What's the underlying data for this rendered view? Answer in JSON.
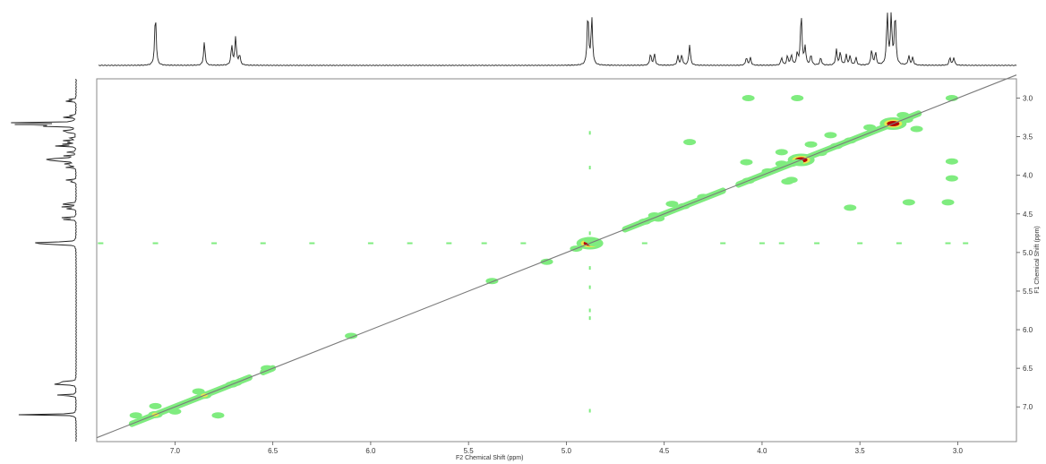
{
  "chart_data": {
    "type": "heatmap",
    "subtype": "2D NMR COSY contour plot with 1D projections",
    "xlabel": "F2 Chemical Shift (ppm)",
    "ylabel": "F1 Chemical Shift (ppm)",
    "xlim": [
      7.4,
      2.7
    ],
    "ylim": [
      2.75,
      7.45
    ],
    "x_reversed": true,
    "y_reversed": true,
    "xticks": [
      "7.0",
      "6.5",
      "6.0",
      "5.5",
      "5.0",
      "4.5",
      "4.0",
      "3.5",
      "3.0"
    ],
    "yticks": [
      "3.0",
      "3.5",
      "4.0",
      "4.5",
      "5.0",
      "5.5",
      "6.0",
      "6.5",
      "7.0"
    ],
    "grid": false,
    "diagonal": true,
    "colors": {
      "low": "#7fec7f",
      "mid": "#e8e850",
      "high": "#b80000",
      "diagonal": "#7a7a7a",
      "spectrum": "#222222"
    },
    "projection_peaks": [
      {
        "ppm": 7.1,
        "height": 1.0
      },
      {
        "ppm": 6.85,
        "height": 0.45
      },
      {
        "ppm": 6.71,
        "height": 0.38
      },
      {
        "ppm": 6.69,
        "height": 0.55
      },
      {
        "ppm": 6.67,
        "height": 0.2
      },
      {
        "ppm": 4.89,
        "height": 1.0
      },
      {
        "ppm": 4.87,
        "height": 0.9
      },
      {
        "ppm": 4.57,
        "height": 0.22
      },
      {
        "ppm": 4.55,
        "height": 0.22
      },
      {
        "ppm": 4.43,
        "height": 0.18
      },
      {
        "ppm": 4.41,
        "height": 0.2
      },
      {
        "ppm": 4.37,
        "height": 0.4
      },
      {
        "ppm": 4.08,
        "height": 0.15
      },
      {
        "ppm": 4.06,
        "height": 0.15
      },
      {
        "ppm": 3.9,
        "height": 0.15
      },
      {
        "ppm": 3.87,
        "height": 0.18
      },
      {
        "ppm": 3.85,
        "height": 0.2
      },
      {
        "ppm": 3.82,
        "height": 0.22
      },
      {
        "ppm": 3.8,
        "height": 1.0
      },
      {
        "ppm": 3.78,
        "height": 0.35
      },
      {
        "ppm": 3.75,
        "height": 0.2
      },
      {
        "ppm": 3.7,
        "height": 0.15
      },
      {
        "ppm": 3.62,
        "height": 0.3
      },
      {
        "ppm": 3.6,
        "height": 0.25
      },
      {
        "ppm": 3.57,
        "height": 0.2
      },
      {
        "ppm": 3.55,
        "height": 0.18
      },
      {
        "ppm": 3.52,
        "height": 0.15
      },
      {
        "ppm": 3.44,
        "height": 0.3
      },
      {
        "ppm": 3.42,
        "height": 0.25
      },
      {
        "ppm": 3.36,
        "height": 1.0
      },
      {
        "ppm": 3.34,
        "height": 0.95
      },
      {
        "ppm": 3.32,
        "height": 1.0
      },
      {
        "ppm": 3.25,
        "height": 0.18
      },
      {
        "ppm": 3.23,
        "height": 0.15
      },
      {
        "ppm": 3.04,
        "height": 0.15
      },
      {
        "ppm": 3.02,
        "height": 0.15
      }
    ],
    "cross_peaks": [
      {
        "x": 7.1,
        "y": 7.1,
        "level": "mid"
      },
      {
        "x": 7.0,
        "y": 7.06,
        "level": "low"
      },
      {
        "x": 6.85,
        "y": 6.85,
        "level": "mid"
      },
      {
        "x": 6.88,
        "y": 6.8,
        "level": "low"
      },
      {
        "x": 6.71,
        "y": 6.71,
        "level": "low"
      },
      {
        "x": 6.69,
        "y": 6.69,
        "level": "low"
      },
      {
        "x": 7.2,
        "y": 7.11,
        "level": "low"
      },
      {
        "x": 6.78,
        "y": 7.11,
        "level": "low"
      },
      {
        "x": 7.1,
        "y": 6.99,
        "level": "low"
      },
      {
        "x": 6.53,
        "y": 6.5,
        "level": "low"
      },
      {
        "x": 6.1,
        "y": 6.08,
        "level": "low"
      },
      {
        "x": 5.38,
        "y": 5.37,
        "level": "low"
      },
      {
        "x": 5.1,
        "y": 5.12,
        "level": "low"
      },
      {
        "x": 4.95,
        "y": 4.95,
        "level": "low"
      },
      {
        "x": 4.88,
        "y": 4.88,
        "level": "high"
      },
      {
        "x": 4.86,
        "y": 4.88,
        "level": "low"
      },
      {
        "x": 4.6,
        "y": 4.6,
        "level": "low"
      },
      {
        "x": 4.55,
        "y": 4.52,
        "level": "low"
      },
      {
        "x": 4.53,
        "y": 4.56,
        "level": "low"
      },
      {
        "x": 4.46,
        "y": 4.37,
        "level": "low"
      },
      {
        "x": 4.4,
        "y": 4.4,
        "level": "low"
      },
      {
        "x": 4.3,
        "y": 4.28,
        "level": "low"
      },
      {
        "x": 4.07,
        "y": 4.07,
        "level": "low"
      },
      {
        "x": 3.97,
        "y": 3.95,
        "level": "low"
      },
      {
        "x": 3.85,
        "y": 3.85,
        "level": "low"
      },
      {
        "x": 3.8,
        "y": 3.8,
        "level": "high"
      },
      {
        "x": 3.7,
        "y": 3.71,
        "level": "low"
      },
      {
        "x": 3.62,
        "y": 3.62,
        "level": "low"
      },
      {
        "x": 3.55,
        "y": 3.55,
        "level": "low"
      },
      {
        "x": 3.33,
        "y": 3.33,
        "level": "high"
      },
      {
        "x": 3.26,
        "y": 3.28,
        "level": "low"
      },
      {
        "x": 3.75,
        "y": 3.6,
        "level": "low"
      },
      {
        "x": 3.65,
        "y": 3.48,
        "level": "low"
      },
      {
        "x": 3.45,
        "y": 3.38,
        "level": "low"
      },
      {
        "x": 3.9,
        "y": 3.7,
        "level": "low"
      },
      {
        "x": 4.37,
        "y": 3.57,
        "level": "low"
      },
      {
        "x": 3.82,
        "y": 3.0,
        "level": "low"
      },
      {
        "x": 4.07,
        "y": 3.0,
        "level": "low"
      },
      {
        "x": 3.28,
        "y": 3.22,
        "level": "low"
      },
      {
        "x": 3.21,
        "y": 3.4,
        "level": "low"
      },
      {
        "x": 3.03,
        "y": 3.0,
        "level": "low"
      },
      {
        "x": 4.08,
        "y": 3.83,
        "level": "low"
      },
      {
        "x": 3.9,
        "y": 3.85,
        "level": "low"
      },
      {
        "x": 3.85,
        "y": 4.06,
        "level": "low"
      },
      {
        "x": 3.82,
        "y": 3.83,
        "level": "low"
      },
      {
        "x": 3.03,
        "y": 3.82,
        "level": "low"
      },
      {
        "x": 3.03,
        "y": 4.04,
        "level": "low"
      },
      {
        "x": 3.55,
        "y": 4.42,
        "level": "low"
      },
      {
        "x": 3.25,
        "y": 4.35,
        "level": "low"
      },
      {
        "x": 3.05,
        "y": 4.35,
        "level": "low"
      },
      {
        "x": 3.87,
        "y": 4.08,
        "level": "low"
      },
      {
        "x": 4.88,
        "y": 4.84,
        "level": "low"
      }
    ],
    "t1_noise_column_ppm": 4.88,
    "t1_noise_row_ppm": 4.88
  }
}
